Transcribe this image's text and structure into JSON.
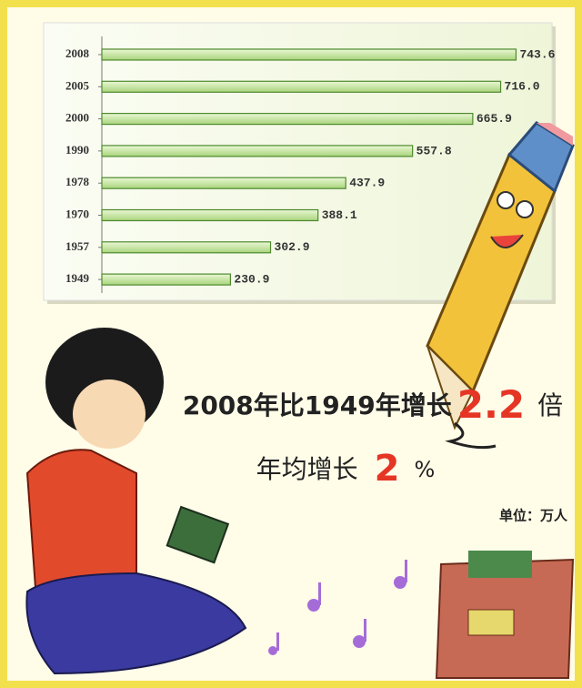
{
  "chart_data": {
    "type": "bar",
    "orientation": "horizontal",
    "categories": [
      "2008",
      "2005",
      "2000",
      "1990",
      "1978",
      "1970",
      "1957",
      "1949"
    ],
    "values": [
      743.6,
      716.0,
      665.9,
      557.8,
      437.9,
      388.1,
      302.9,
      230.9
    ],
    "value_labels": [
      "743.6",
      "716.0",
      "665.9",
      "557.8",
      "437.9",
      "388.1",
      "302.9",
      "230.9"
    ],
    "color": "#c8e6a0",
    "xlim": [
      0,
      800
    ],
    "annotations": [
      {
        "text": "2008年比1949年增长",
        "value": 2.2,
        "unit": "倍"
      },
      {
        "text": "年均增长",
        "value": 2,
        "unit": "%"
      }
    ],
    "unit_note": "单位：万人"
  }
}
